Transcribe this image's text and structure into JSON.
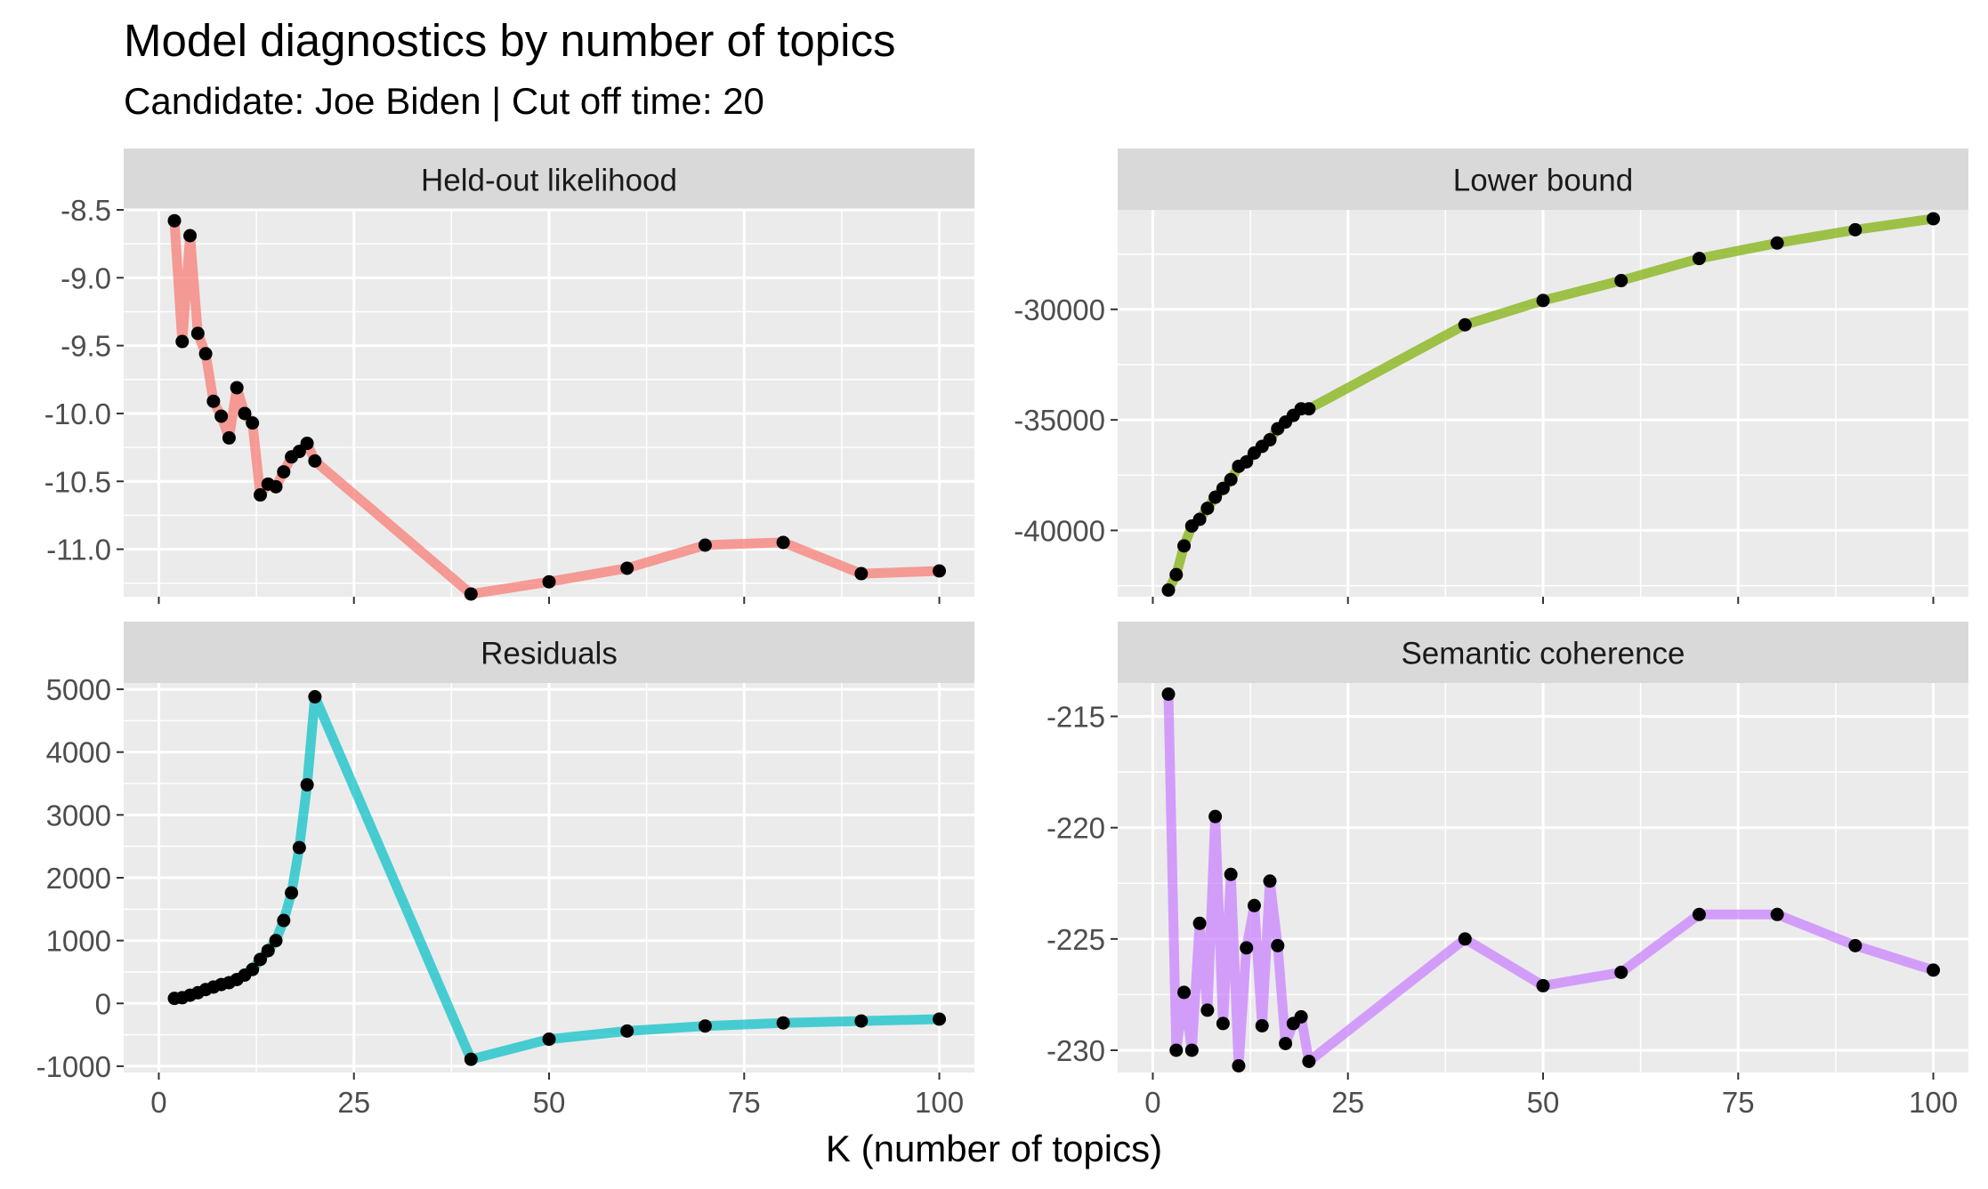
{
  "title": "Model diagnostics by number of topics",
  "subtitle": "Candidate: Joe Biden | Cut off time: 20",
  "chart_data": {
    "type": "line",
    "xlabel": "K (number of topics)",
    "xlim": [
      0,
      100
    ],
    "x_ticks": [
      0,
      25,
      50,
      75,
      100
    ],
    "x_tick_labels": [
      "0",
      "25",
      "50",
      "75",
      "100"
    ],
    "grid": true,
    "legend": "none",
    "facets": [
      {
        "name": "Held-out likelihood",
        "color": "#F8766D",
        "ylim": [
          -11.35,
          -8.5
        ],
        "y_ticks": [
          -8.5,
          -9.0,
          -9.5,
          -10.0,
          -10.5,
          -11.0
        ],
        "y_tick_labels": [
          "-8.5",
          "-9.0",
          "-9.5",
          "-10.0",
          "-10.5",
          "-11.0"
        ],
        "x": [
          2,
          3,
          4,
          5,
          6,
          7,
          8,
          9,
          10,
          11,
          12,
          13,
          14,
          15,
          16,
          17,
          18,
          19,
          20,
          40,
          50,
          60,
          70,
          80,
          90,
          100
        ],
        "values": [
          -8.58,
          -9.47,
          -8.69,
          -9.41,
          -9.56,
          -9.91,
          -10.02,
          -10.18,
          -9.81,
          -10.0,
          -10.07,
          -10.6,
          -10.52,
          -10.54,
          -10.43,
          -10.32,
          -10.28,
          -10.22,
          -10.35,
          -11.33,
          -11.24,
          -11.14,
          -10.97,
          -10.95,
          -11.18,
          -11.16
        ]
      },
      {
        "name": "Lower bound",
        "color": "#7CAE00",
        "ylim": [
          -43000,
          -25500
        ],
        "y_ticks": [
          -30000,
          -35000,
          -40000
        ],
        "y_tick_labels": [
          "-30000",
          "-35000",
          "-40000"
        ],
        "x": [
          2,
          3,
          4,
          5,
          6,
          7,
          8,
          9,
          10,
          11,
          12,
          13,
          14,
          15,
          16,
          17,
          18,
          19,
          20,
          40,
          50,
          60,
          70,
          80,
          90,
          100
        ],
        "values": [
          -42700,
          -42000,
          -40700,
          -39800,
          -39500,
          -39000,
          -38500,
          -38100,
          -37700,
          -37100,
          -36900,
          -36500,
          -36200,
          -35900,
          -35400,
          -35100,
          -34800,
          -34500,
          -34500,
          -30700,
          -29600,
          -28700,
          -27700,
          -27000,
          -26400,
          -25900
        ]
      },
      {
        "name": "Residuals",
        "color": "#00BFC4",
        "ylim": [
          -1100,
          5100
        ],
        "y_ticks": [
          5000,
          4000,
          3000,
          2000,
          1000,
          0,
          -1000
        ],
        "y_tick_labels": [
          "5000",
          "4000",
          "3000",
          "2000",
          "1000",
          "0",
          "-1000"
        ],
        "x": [
          2,
          3,
          4,
          5,
          6,
          7,
          8,
          9,
          10,
          11,
          12,
          13,
          14,
          15,
          16,
          17,
          18,
          19,
          20,
          40,
          50,
          60,
          70,
          80,
          90,
          100
        ],
        "values": [
          80,
          90,
          130,
          170,
          220,
          260,
          300,
          330,
          380,
          450,
          540,
          700,
          840,
          1000,
          1320,
          1760,
          2480,
          3480,
          4880,
          -890,
          -570,
          -440,
          -360,
          -310,
          -280,
          -250
        ]
      },
      {
        "name": "Semantic coherence",
        "color": "#C77CFF",
        "ylim": [
          -231,
          -213.5
        ],
        "y_ticks": [
          -215,
          -220,
          -225,
          -230
        ],
        "y_tick_labels": [
          "-215",
          "-220",
          "-225",
          "-230"
        ],
        "x": [
          2,
          3,
          4,
          5,
          6,
          7,
          8,
          9,
          10,
          11,
          12,
          13,
          14,
          15,
          16,
          17,
          18,
          19,
          20,
          40,
          50,
          60,
          70,
          80,
          90,
          100
        ],
        "values": [
          -214.0,
          -230.0,
          -227.4,
          -230.0,
          -224.3,
          -228.2,
          -219.5,
          -228.8,
          -222.1,
          -230.7,
          -225.4,
          -223.5,
          -228.9,
          -222.4,
          -225.3,
          -229.7,
          -228.8,
          -228.5,
          -230.5,
          -225.0,
          -227.1,
          -226.5,
          -223.9,
          -223.9,
          -225.3,
          -226.4
        ]
      }
    ]
  }
}
